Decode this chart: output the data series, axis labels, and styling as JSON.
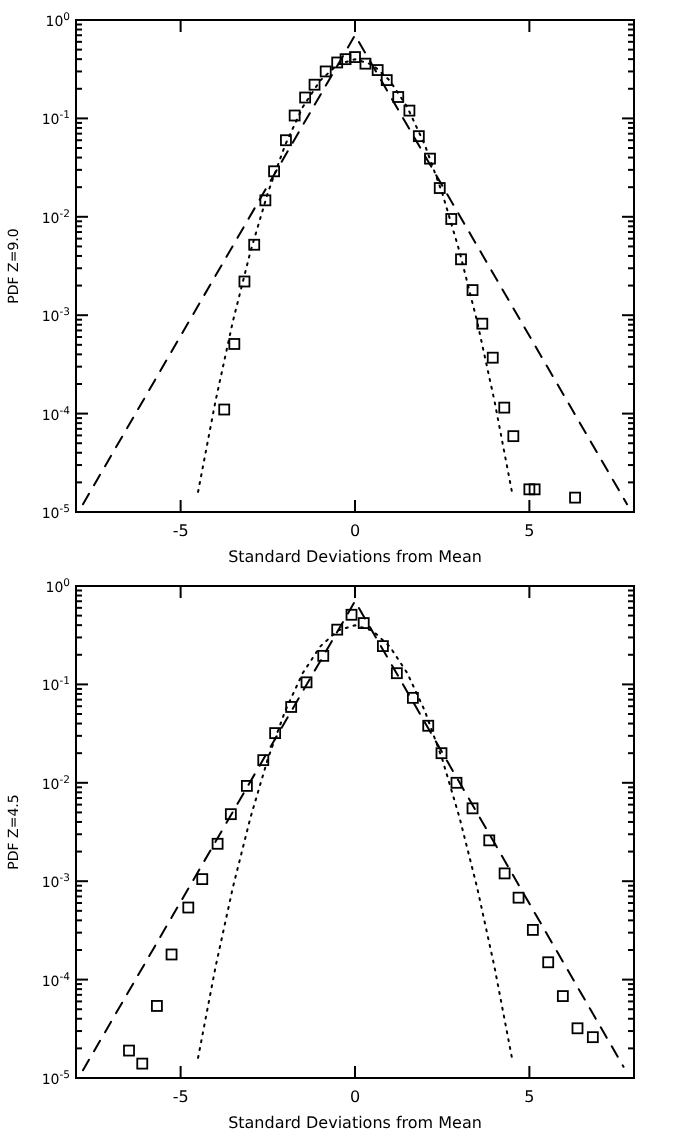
{
  "chart_data": [
    {
      "type": "scatter",
      "xlabel": "Standard Deviations from Mean",
      "ylabel": "PDF Z=9.0",
      "log": "y",
      "xlim": [
        -8,
        8
      ],
      "ylim": [
        1e-05,
        1
      ],
      "xticks": [
        -5,
        0,
        5
      ],
      "yticks": [
        {
          "value": 1,
          "label": "10$^{0}$"
        },
        {
          "value": 0.1,
          "label": "10$^{-1}$"
        },
        {
          "value": 0.01,
          "label": "10$^{-2}$"
        },
        {
          "value": 0.001,
          "label": "10$^{-3}$"
        },
        {
          "value": 0.0001,
          "label": "10$^{-4}$"
        },
        {
          "value": 1e-05,
          "label": "10$^{-5}$"
        }
      ],
      "series": [
        {
          "marker": "square",
          "color": "#000000",
          "x": [
            -3.75,
            -3.46,
            -3.17,
            -2.89,
            -2.57,
            -2.32,
            -1.98,
            -1.73,
            -1.43,
            -1.16,
            -0.84,
            -0.51,
            -0.27,
            0,
            0.3,
            0.65,
            0.91,
            1.24,
            1.56,
            1.83,
            2.15,
            2.43,
            2.76,
            3.04,
            3.37,
            3.65,
            3.95,
            4.28,
            4.54,
            5.0,
            5.15,
            6.31
          ],
          "values": [
            0.00011,
            0.00051,
            0.0022,
            0.0052,
            0.0147,
            0.029,
            0.06,
            0.107,
            0.163,
            0.22,
            0.3,
            0.37,
            0.4,
            0.42,
            0.36,
            0.31,
            0.245,
            0.165,
            0.12,
            0.066,
            0.039,
            0.0196,
            0.0095,
            0.0037,
            0.0018,
            0.00082,
            0.00037,
            0.000115,
            5.9e-05,
            1.7e-05,
            1.7e-05,
            1.4e-05
          ]
        },
        {
          "type": "line",
          "line_style": "dashed",
          "marker": "none",
          "color": "#000000",
          "x": [
            -7.8,
            0,
            7.8
          ],
          "values": [
            1.2e-05,
            0.7,
            1.2e-05
          ]
        },
        {
          "type": "line",
          "line_style": "dotted",
          "marker": "none",
          "color": "#000000",
          "x": [
            -4.5,
            -4,
            -3.5,
            -3,
            -2.5,
            -2,
            -1.5,
            -1,
            -0.5,
            0,
            0.5,
            1,
            1.5,
            2,
            2.5,
            3,
            3.5,
            4,
            4.5
          ],
          "values": [
            1.6e-05,
            0.000134,
            0.00087,
            0.0044,
            0.0175,
            0.054,
            0.13,
            0.242,
            0.352,
            0.399,
            0.352,
            0.242,
            0.13,
            0.054,
            0.0175,
            0.0044,
            0.00087,
            0.000134,
            1.6e-05
          ]
        }
      ]
    },
    {
      "type": "scatter",
      "xlabel": "Standard Deviations from Mean",
      "ylabel": "PDF Z=4.5",
      "log": "y",
      "xlim": [
        -8,
        8
      ],
      "ylim": [
        1e-05,
        1
      ],
      "xticks": [
        -5,
        0,
        5
      ],
      "yticks": [
        {
          "value": 1,
          "label": "10$^{0}$"
        },
        {
          "value": 0.1,
          "label": "10$^{-1}$"
        },
        {
          "value": 0.01,
          "label": "10$^{-2}$"
        },
        {
          "value": 0.001,
          "label": "10$^{-3}$"
        },
        {
          "value": 0.0001,
          "label": "10$^{-4}$"
        },
        {
          "value": 1e-05,
          "label": "10$^{-5}$"
        }
      ],
      "series": [
        {
          "marker": "square",
          "color": "#000000",
          "x": [
            -6.48,
            -6.1,
            -5.68,
            -5.26,
            -4.78,
            -4.38,
            -3.94,
            -3.56,
            -3.1,
            -2.63,
            -2.29,
            -1.83,
            -1.39,
            -0.91,
            -0.51,
            -0.1,
            0.25,
            0.8,
            1.2,
            1.66,
            2.1,
            2.48,
            2.91,
            3.37,
            3.85,
            4.29,
            4.69,
            5.1,
            5.54,
            5.96,
            6.38,
            6.82
          ],
          "values": [
            1.9e-05,
            1.4e-05,
            5.4e-05,
            0.00018,
            0.00054,
            0.00105,
            0.0024,
            0.0048,
            0.0093,
            0.017,
            0.032,
            0.059,
            0.105,
            0.195,
            0.36,
            0.51,
            0.42,
            0.245,
            0.13,
            0.073,
            0.038,
            0.02,
            0.01,
            0.0055,
            0.0026,
            0.0012,
            0.00068,
            0.00032,
            0.00015,
            6.8e-05,
            3.2e-05,
            2.6e-05
          ]
        },
        {
          "type": "line",
          "line_style": "dashed",
          "marker": "none",
          "color": "#000000",
          "x": [
            -7.8,
            0,
            7.7
          ],
          "values": [
            1.2e-05,
            0.7,
            1.3e-05
          ]
        },
        {
          "type": "line",
          "line_style": "dotted",
          "marker": "none",
          "color": "#000000",
          "x": [
            -4.5,
            -4,
            -3.5,
            -3,
            -2.5,
            -2,
            -1.5,
            -1,
            -0.5,
            0,
            0.5,
            1,
            1.5,
            2,
            2.5,
            3,
            3.5,
            4,
            4.5
          ],
          "values": [
            1.6e-05,
            0.000134,
            0.00087,
            0.0044,
            0.0175,
            0.054,
            0.13,
            0.242,
            0.352,
            0.399,
            0.352,
            0.242,
            0.13,
            0.054,
            0.0175,
            0.0044,
            0.00087,
            0.000134,
            1.6e-05
          ]
        }
      ]
    }
  ]
}
